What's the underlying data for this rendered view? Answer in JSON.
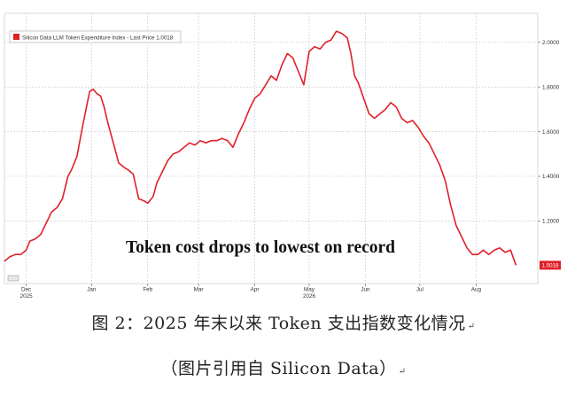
{
  "chart_data": {
    "type": "line",
    "legend": {
      "label": "Silicon Data LLM Token Expenditure Index - Last Price 1.0018",
      "placement": "top-left",
      "color": "#e0202a"
    },
    "annotation": "Token cost drops to lowest on record",
    "last_price_tag": "1.0018",
    "y_axis": {
      "side": "right",
      "range": [
        0.92,
        2.13
      ],
      "ticks": [
        "1.2000",
        "1.4000",
        "1.6000",
        "1.8000",
        "2.0000"
      ],
      "tick_values": [
        1.2,
        1.4,
        1.6,
        1.8,
        2.0
      ]
    },
    "x_axis": {
      "month_labels": [
        "Dec",
        "Jan",
        "Feb",
        "Mar",
        "Apr",
        "May",
        "Jun",
        "Jul",
        "Aug"
      ],
      "month_days": [
        0,
        36,
        67,
        95,
        126,
        156,
        187,
        217,
        248
      ],
      "year_labels": [
        {
          "text": "2025",
          "day": 0
        },
        {
          "text": "2026",
          "day": 156
        }
      ],
      "range_days": [
        -12,
        282
      ]
    },
    "series": [
      {
        "color": "#e0202a",
        "days": [
          -12,
          -9,
          -6,
          -3,
          0,
          2,
          5,
          8,
          11,
          14,
          17,
          20,
          23,
          25,
          28,
          31,
          33,
          35,
          37,
          39,
          41,
          43,
          45,
          48,
          51,
          54,
          56,
          59,
          62,
          65,
          67,
          70,
          72,
          75,
          78,
          81,
          84,
          87,
          90,
          93,
          96,
          99,
          102,
          105,
          108,
          111,
          114,
          117,
          120,
          123,
          126,
          129,
          132,
          135,
          138,
          141,
          144,
          147,
          150,
          153,
          156,
          159,
          162,
          165,
          168,
          171,
          174,
          177,
          179,
          181,
          183,
          186,
          189,
          192,
          195,
          198,
          201,
          204,
          207,
          210,
          213,
          216,
          219,
          222,
          225,
          228,
          231,
          234,
          237,
          240,
          243,
          246,
          249,
          252,
          255,
          258,
          261,
          264,
          267,
          270
        ],
        "values": [
          1.02,
          1.04,
          1.05,
          1.05,
          1.07,
          1.11,
          1.12,
          1.14,
          1.19,
          1.24,
          1.26,
          1.3,
          1.4,
          1.43,
          1.49,
          1.62,
          1.7,
          1.78,
          1.79,
          1.77,
          1.76,
          1.71,
          1.64,
          1.55,
          1.46,
          1.44,
          1.43,
          1.41,
          1.3,
          1.29,
          1.28,
          1.31,
          1.37,
          1.42,
          1.47,
          1.5,
          1.51,
          1.53,
          1.55,
          1.54,
          1.56,
          1.55,
          1.56,
          1.56,
          1.57,
          1.56,
          1.53,
          1.59,
          1.64,
          1.7,
          1.75,
          1.77,
          1.81,
          1.85,
          1.83,
          1.9,
          1.95,
          1.93,
          1.87,
          1.81,
          1.96,
          1.98,
          1.97,
          2.0,
          2.01,
          2.05,
          2.04,
          2.02,
          1.95,
          1.85,
          1.82,
          1.75,
          1.68,
          1.66,
          1.68,
          1.7,
          1.73,
          1.71,
          1.66,
          1.64,
          1.65,
          1.62,
          1.58,
          1.55,
          1.5,
          1.45,
          1.38,
          1.27,
          1.18,
          1.13,
          1.08,
          1.05,
          1.05,
          1.07,
          1.05,
          1.07,
          1.08,
          1.06,
          1.07,
          1.002
        ]
      }
    ]
  },
  "caption": {
    "main": "图 2：2025 年末以来 Token 支出指数变化情况",
    "sub": "（图片引用自 Silicon Data）"
  }
}
